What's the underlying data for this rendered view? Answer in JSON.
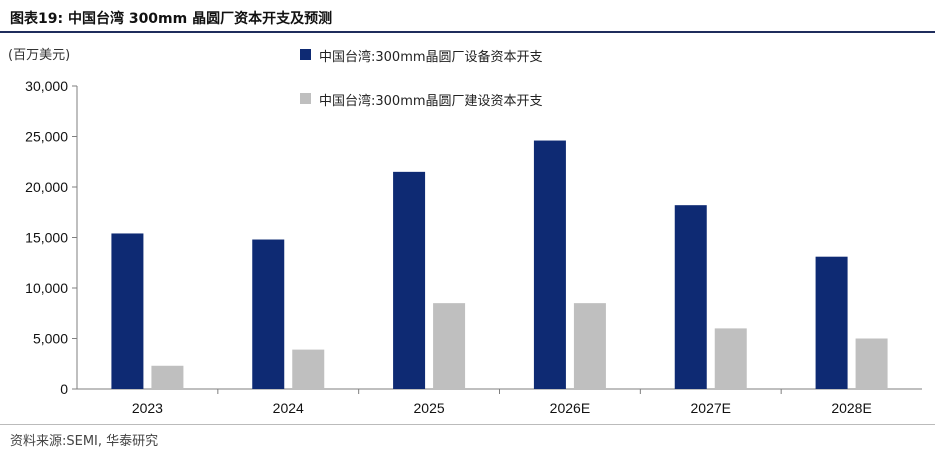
{
  "header": {
    "title": "图表19:   中国台湾 300mm 晶圆厂资本开支及预测"
  },
  "unit_label": "(百万美元)",
  "source": "资料来源:SEMI,  华泰研究",
  "chart_data": {
    "type": "bar",
    "categories": [
      "2023",
      "2024",
      "2025",
      "2026E",
      "2027E",
      "2028E"
    ],
    "series": [
      {
        "name": "中国台湾:300mm晶圆厂设备资本开支",
        "color": "#0e2a73",
        "values": [
          15400,
          14800,
          21500,
          24600,
          18200,
          13100
        ]
      },
      {
        "name": "中国台湾:300mm晶圆厂建设资本开支",
        "color": "#bfbfbf",
        "values": [
          2300,
          3900,
          8500,
          8500,
          6000,
          5000
        ]
      }
    ],
    "yticks": [
      "0",
      "5,000",
      "10,000",
      "15,000",
      "20,000",
      "25,000",
      "30,000"
    ],
    "ylim": [
      0,
      30000
    ],
    "grid": false,
    "legend_position": "top-left"
  }
}
